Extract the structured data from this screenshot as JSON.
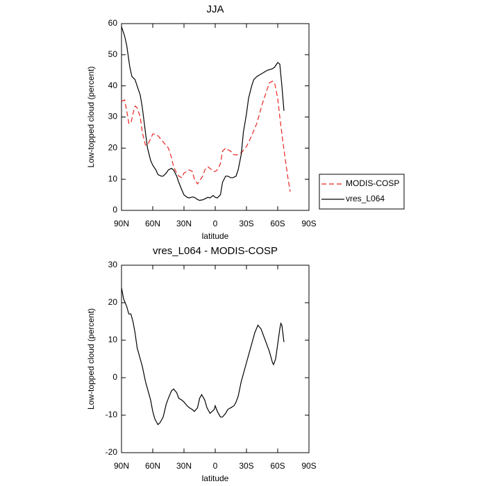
{
  "chart_data": [
    {
      "type": "line",
      "title": "JJA",
      "xlabel": "latitude",
      "ylabel": "Low-topped cloud (percent)",
      "xlim": [
        90,
        -90
      ],
      "xticks": [
        {
          "value": 90,
          "label": "90N"
        },
        {
          "value": 60,
          "label": "60N"
        },
        {
          "value": 30,
          "label": "30N"
        },
        0,
        {
          "value": -30,
          "label": "30S"
        },
        {
          "value": -60,
          "label": "60S"
        },
        {
          "value": -90,
          "label": "90S"
        }
      ],
      "ylim": [
        0,
        60
      ],
      "yticks": [
        0,
        10,
        20,
        30,
        40,
        50,
        60
      ],
      "legend": "right",
      "series": [
        {
          "name": "MODIS-COSP",
          "color": "#e8231f",
          "style": "dashed",
          "x": [
            90,
            87,
            85,
            83,
            81,
            79,
            77,
            75,
            72,
            70,
            67,
            65,
            62,
            60,
            57,
            55,
            50,
            45,
            42,
            40,
            37,
            35,
            32,
            30,
            27,
            25,
            22,
            20,
            17,
            15,
            12,
            10,
            7,
            5,
            2,
            0,
            -2,
            -5,
            -7,
            -10,
            -12,
            -15,
            -17,
            -20,
            -22,
            -25,
            -30,
            -35,
            -40,
            -45,
            -50,
            -52,
            -55,
            -57,
            -60,
            -62,
            -65,
            -67,
            -70,
            -72
          ],
          "values": [
            35,
            35.5,
            32,
            28,
            28,
            31,
            33.5,
            33,
            30,
            25,
            21,
            21,
            23,
            24.5,
            24.5,
            24,
            22,
            20,
            17,
            14,
            12,
            11,
            10.5,
            12,
            12.5,
            13,
            12.5,
            10,
            8.5,
            9.5,
            11,
            13,
            14,
            13.5,
            12.5,
            12.5,
            13,
            15,
            19,
            20,
            19.5,
            19,
            18,
            17.8,
            18,
            18.5,
            20.5,
            24,
            28,
            34,
            39,
            41,
            41.5,
            41,
            36,
            30,
            22,
            17,
            10,
            6
          ]
        },
        {
          "name": "vres_L064",
          "color": "#000000",
          "style": "solid",
          "x": [
            90,
            87,
            85,
            82,
            80,
            77,
            75,
            72,
            70,
            67,
            65,
            62,
            60,
            57,
            55,
            52,
            50,
            47,
            45,
            42,
            40,
            37,
            35,
            32,
            30,
            27,
            25,
            22,
            20,
            17,
            15,
            12,
            10,
            7,
            5,
            2,
            0,
            -2,
            -5,
            -7,
            -10,
            -12,
            -15,
            -17,
            -20,
            -22,
            -25,
            -27,
            -30,
            -32,
            -35,
            -37,
            -40,
            -45,
            -50,
            -55,
            -57,
            -60,
            -62,
            -64,
            -66
          ],
          "values": [
            59,
            56,
            53,
            46,
            43,
            42,
            40,
            37,
            33,
            25,
            20,
            16,
            14.5,
            13,
            11.5,
            11,
            11,
            12,
            13,
            13.5,
            13,
            11,
            9,
            6.5,
            5,
            4.2,
            4,
            4.3,
            4.2,
            3.5,
            3.2,
            3.4,
            3.7,
            4.2,
            4,
            4.8,
            4.2,
            4,
            5,
            9,
            11,
            11,
            10.5,
            10.5,
            11,
            13,
            18,
            25,
            31,
            36,
            40,
            42,
            43,
            44,
            45,
            45.5,
            46,
            47.5,
            47,
            40,
            32
          ]
        }
      ]
    },
    {
      "type": "line",
      "title": "vres_L064 - MODIS-COSP",
      "xlabel": "latitude",
      "ylabel": "Low-topped cloud (percent)",
      "xlim": [
        90,
        -90
      ],
      "xticks": [
        {
          "value": 90,
          "label": "90N"
        },
        {
          "value": 60,
          "label": "60N"
        },
        {
          "value": 30,
          "label": "30N"
        },
        0,
        {
          "value": -30,
          "label": "30S"
        },
        {
          "value": -60,
          "label": "60S"
        },
        {
          "value": -90,
          "label": "90S"
        }
      ],
      "ylim": [
        -20,
        30
      ],
      "yticks": [
        -20,
        -10,
        0,
        10,
        20,
        30
      ],
      "series": [
        {
          "color": "#000000",
          "style": "solid",
          "x": [
            90,
            88,
            85,
            83,
            81,
            79,
            77,
            75,
            72,
            70,
            67,
            65,
            62,
            60,
            58,
            55,
            53,
            50,
            47,
            45,
            42,
            40,
            37,
            35,
            32,
            30,
            27,
            25,
            22,
            20,
            17,
            15,
            13,
            10,
            8,
            5,
            3,
            1,
            0,
            -2,
            -5,
            -7,
            -10,
            -12,
            -15,
            -18,
            -20,
            -22,
            -25,
            -30,
            -35,
            -38,
            -41,
            -44,
            -48,
            -52,
            -55,
            -56,
            -58,
            -60,
            -62,
            -63,
            -64,
            -66
          ],
          "values": [
            24,
            21,
            19,
            17,
            17,
            15,
            12,
            8,
            5,
            3,
            -1,
            -3,
            -6,
            -9,
            -11,
            -12.5,
            -12,
            -10.5,
            -7,
            -5.5,
            -3.5,
            -3,
            -4,
            -5.5,
            -6,
            -6.5,
            -7.5,
            -8,
            -8.5,
            -9,
            -8,
            -5.5,
            -4.5,
            -6,
            -8,
            -9.5,
            -9,
            -8.5,
            -7.5,
            -9,
            -10.5,
            -10.5,
            -9.5,
            -8.5,
            -8,
            -7.5,
            -6.5,
            -5,
            -1,
            4,
            9,
            12,
            14,
            13,
            10,
            7,
            4,
            3.5,
            5,
            9,
            13,
            14.5,
            14,
            9.5
          ]
        }
      ]
    }
  ]
}
